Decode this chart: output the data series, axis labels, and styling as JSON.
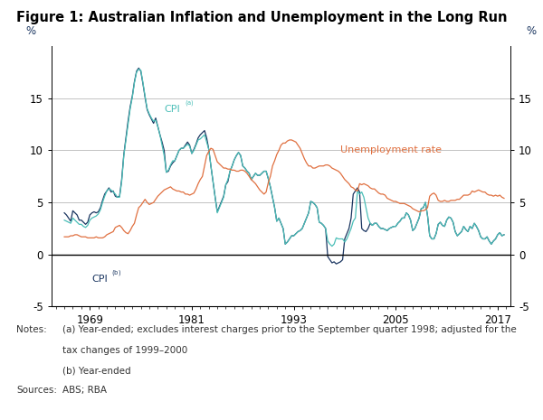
{
  "title": "Figure 1: Australian Inflation and Unemployment in the Long Run",
  "title_fontsize": 10.5,
  "ylabel": "%",
  "ylim": [
    -5,
    20
  ],
  "yticks": [
    -5,
    0,
    5,
    10,
    15
  ],
  "xlim_start": 1964.5,
  "xlim_end": 2018.5,
  "xticks": [
    1969,
    1981,
    1993,
    2005,
    2017
  ],
  "grid_color": "#aaaaaa",
  "cpi_a_color": "#4bbfb8",
  "cpi_b_color": "#1a3560",
  "unemp_color": "#e07040",
  "bg_color": "#ffffff",
  "cpi_a_years": [
    1966,
    1966.25,
    1966.5,
    1966.75,
    1967,
    1967.25,
    1967.5,
    1967.75,
    1968,
    1968.25,
    1968.5,
    1968.75,
    1969,
    1969.25,
    1969.5,
    1969.75,
    1970,
    1970.25,
    1970.5,
    1970.75,
    1971,
    1971.25,
    1971.5,
    1971.75,
    1972,
    1972.25,
    1972.5,
    1972.75,
    1973,
    1973.25,
    1973.5,
    1973.75,
    1974,
    1974.25,
    1974.5,
    1974.75,
    1975,
    1975.25,
    1975.5,
    1975.75,
    1976,
    1976.25,
    1976.5,
    1976.75,
    1977,
    1977.25,
    1977.5,
    1977.75,
    1978,
    1978.25,
    1978.5,
    1978.75,
    1979,
    1979.25,
    1979.5,
    1979.75,
    1980,
    1980.25,
    1980.5,
    1980.75,
    1981,
    1981.25,
    1981.5,
    1981.75,
    1982,
    1982.25,
    1982.5,
    1982.75,
    1983,
    1983.25,
    1983.5,
    1983.75,
    1984,
    1984.25,
    1984.5,
    1984.75,
    1985,
    1985.25,
    1985.5,
    1985.75,
    1986,
    1986.25,
    1986.5,
    1986.75,
    1987,
    1987.25,
    1987.5,
    1987.75,
    1988,
    1988.25,
    1988.5,
    1988.75,
    1989,
    1989.25,
    1989.5,
    1989.75,
    1990,
    1990.25,
    1990.5,
    1990.75,
    1991,
    1991.25,
    1991.5,
    1991.75,
    1992,
    1992.25,
    1992.5,
    1992.75,
    1993,
    1993.25,
    1993.5,
    1993.75,
    1994,
    1994.25,
    1994.5,
    1994.75,
    1995,
    1995.25,
    1995.5,
    1995.75,
    1996,
    1996.25,
    1996.5,
    1996.75,
    1997,
    1997.25,
    1997.5,
    1997.75,
    1998,
    1998.25,
    1998.5,
    1998.75,
    1999,
    1999.25,
    1999.5,
    1999.75,
    2000,
    2000.25,
    2000.5,
    2000.75,
    2001,
    2001.25,
    2001.5,
    2001.75,
    2002,
    2002.25,
    2002.5,
    2002.75,
    2003,
    2003.25,
    2003.5,
    2003.75,
    2004,
    2004.25,
    2004.5,
    2004.75,
    2005,
    2005.25,
    2005.5,
    2005.75,
    2006,
    2006.25,
    2006.5,
    2006.75,
    2007,
    2007.25,
    2007.5,
    2007.75,
    2008,
    2008.25,
    2008.5,
    2008.75,
    2009,
    2009.25,
    2009.5,
    2009.75,
    2010,
    2010.25,
    2010.5,
    2010.75,
    2011,
    2011.25,
    2011.5,
    2011.75,
    2012,
    2012.25,
    2012.5,
    2012.75,
    2013,
    2013.25,
    2013.5,
    2013.75,
    2014,
    2014.25,
    2014.5,
    2014.75,
    2015,
    2015.25,
    2015.5,
    2015.75,
    2016,
    2016.25,
    2016.5,
    2016.75,
    2017,
    2017.25,
    2017.5,
    2017.75
  ],
  "cpi_a_values": [
    3.3,
    3.2,
    3.1,
    3.0,
    3.5,
    3.3,
    3.1,
    2.9,
    2.9,
    2.7,
    2.6,
    2.8,
    3.3,
    3.5,
    3.6,
    3.7,
    3.9,
    4.3,
    5.0,
    5.6,
    6.1,
    6.3,
    6.2,
    6.0,
    5.8,
    5.5,
    5.5,
    7.0,
    9.5,
    11.0,
    12.5,
    14.0,
    15.1,
    16.5,
    17.5,
    17.8,
    17.7,
    16.5,
    15.2,
    14.0,
    13.5,
    13.1,
    12.8,
    12.9,
    12.3,
    11.5,
    10.5,
    9.5,
    7.9,
    8.1,
    8.6,
    9.0,
    9.0,
    9.5,
    10.0,
    10.2,
    10.2,
    10.4,
    10.6,
    10.4,
    9.7,
    10.0,
    10.5,
    11.0,
    11.1,
    11.3,
    11.5,
    10.8,
    10.1,
    8.5,
    7.0,
    5.5,
    4.0,
    4.5,
    5.0,
    5.5,
    6.7,
    7.2,
    8.0,
    8.5,
    9.1,
    9.5,
    9.8,
    9.5,
    8.5,
    8.3,
    8.0,
    7.8,
    7.2,
    7.5,
    7.8,
    7.6,
    7.6,
    7.8,
    8.0,
    8.0,
    7.3,
    6.5,
    5.5,
    4.5,
    3.2,
    3.5,
    3.0,
    2.5,
    1.0,
    1.2,
    1.5,
    1.8,
    1.8,
    2.0,
    2.2,
    2.3,
    2.5,
    3.0,
    3.5,
    4.0,
    5.1,
    5.0,
    4.8,
    4.5,
    3.1,
    3.0,
    2.8,
    2.5,
    1.3,
    1.0,
    0.8,
    1.0,
    1.6,
    1.5,
    1.5,
    1.5,
    1.2,
    1.5,
    2.0,
    2.5,
    3.2,
    3.5,
    6.1,
    5.8,
    6.0,
    5.5,
    4.5,
    3.5,
    3.0,
    2.8,
    3.0,
    3.0,
    2.7,
    2.5,
    2.5,
    2.4,
    2.3,
    2.5,
    2.6,
    2.7,
    2.7,
    3.0,
    3.2,
    3.5,
    3.5,
    4.0,
    3.8,
    3.3,
    2.3,
    2.5,
    3.0,
    3.5,
    4.4,
    4.5,
    5.0,
    3.7,
    1.8,
    1.5,
    1.5,
    2.0,
    2.9,
    3.1,
    2.8,
    2.7,
    3.3,
    3.6,
    3.5,
    3.1,
    2.2,
    1.8,
    2.0,
    2.2,
    2.7,
    2.4,
    2.2,
    2.7,
    2.5,
    3.0,
    2.7,
    2.3,
    1.7,
    1.5,
    1.5,
    1.7,
    1.3,
    1.0,
    1.3,
    1.5,
    1.9,
    2.1,
    1.8,
    1.9
  ],
  "cpi_b_years": [
    1966,
    1966.25,
    1966.5,
    1966.75,
    1967,
    1967.25,
    1967.5,
    1967.75,
    1968,
    1968.25,
    1968.5,
    1968.75,
    1969,
    1969.25,
    1969.5,
    1969.75,
    1970,
    1970.25,
    1970.5,
    1970.75,
    1971,
    1971.25,
    1971.5,
    1971.75,
    1972,
    1972.25,
    1972.5,
    1972.75,
    1973,
    1973.25,
    1973.5,
    1973.75,
    1974,
    1974.25,
    1974.5,
    1974.75,
    1975,
    1975.25,
    1975.5,
    1975.75,
    1976,
    1976.25,
    1976.5,
    1976.75,
    1977,
    1977.25,
    1977.5,
    1977.75,
    1978,
    1978.25,
    1978.5,
    1978.75,
    1979,
    1979.25,
    1979.5,
    1979.75,
    1980,
    1980.25,
    1980.5,
    1980.75,
    1981,
    1981.25,
    1981.5,
    1981.75,
    1982,
    1982.25,
    1982.5,
    1982.75,
    1983,
    1983.25,
    1983.5,
    1983.75,
    1984,
    1984.25,
    1984.5,
    1984.75,
    1985,
    1985.25,
    1985.5,
    1985.75,
    1986,
    1986.25,
    1986.5,
    1986.75,
    1987,
    1987.25,
    1987.5,
    1987.75,
    1988,
    1988.25,
    1988.5,
    1988.75,
    1989,
    1989.25,
    1989.5,
    1989.75,
    1990,
    1990.25,
    1990.5,
    1990.75,
    1991,
    1991.25,
    1991.5,
    1991.75,
    1992,
    1992.25,
    1992.5,
    1992.75,
    1993,
    1993.25,
    1993.5,
    1993.75,
    1994,
    1994.25,
    1994.5,
    1994.75,
    1995,
    1995.25,
    1995.5,
    1995.75,
    1996,
    1996.25,
    1996.5,
    1996.75,
    1997,
    1997.25,
    1997.5,
    1997.75,
    1998,
    1998.25,
    1998.5,
    1998.75,
    1999,
    1999.25,
    1999.5,
    1999.75,
    2000,
    2000.25,
    2000.5,
    2000.75,
    2001,
    2001.25,
    2001.5,
    2001.75,
    2002,
    2002.25,
    2002.5,
    2002.75,
    2003,
    2003.25,
    2003.5,
    2003.75,
    2004,
    2004.25,
    2004.5,
    2004.75,
    2005,
    2005.25,
    2005.5,
    2005.75,
    2006,
    2006.25,
    2006.5,
    2006.75,
    2007,
    2007.25,
    2007.5,
    2007.75,
    2008,
    2008.25,
    2008.5,
    2008.75,
    2009,
    2009.25,
    2009.5,
    2009.75,
    2010,
    2010.25,
    2010.5,
    2010.75,
    2011,
    2011.25,
    2011.5,
    2011.75,
    2012,
    2012.25,
    2012.5,
    2012.75,
    2013,
    2013.25,
    2013.5,
    2013.75,
    2014,
    2014.25,
    2014.5,
    2014.75,
    2015,
    2015.25,
    2015.5,
    2015.75,
    2016,
    2016.25,
    2016.5,
    2016.75,
    2017,
    2017.25,
    2017.5,
    2017.75
  ],
  "cpi_b_values": [
    4.0,
    3.8,
    3.5,
    3.2,
    4.2,
    4.0,
    3.8,
    3.3,
    3.3,
    3.1,
    2.9,
    3.1,
    3.8,
    4.0,
    4.1,
    4.0,
    4.1,
    4.5,
    5.2,
    5.8,
    6.1,
    6.4,
    6.0,
    6.1,
    5.6,
    5.5,
    5.6,
    7.2,
    9.6,
    11.2,
    12.8,
    14.2,
    15.2,
    16.6,
    17.6,
    17.9,
    17.6,
    16.4,
    15.1,
    13.9,
    13.4,
    13.0,
    12.6,
    13.1,
    12.3,
    11.5,
    10.8,
    10.0,
    7.9,
    8.0,
    8.5,
    8.8,
    9.0,
    9.5,
    10.0,
    10.2,
    10.2,
    10.5,
    10.8,
    10.5,
    9.7,
    10.1,
    10.6,
    11.2,
    11.5,
    11.7,
    11.9,
    11.2,
    10.1,
    8.5,
    7.0,
    5.5,
    4.1,
    4.6,
    5.1,
    5.6,
    6.7,
    7.0,
    8.0,
    8.5,
    9.1,
    9.5,
    9.8,
    9.5,
    8.5,
    8.3,
    8.0,
    7.8,
    7.2,
    7.5,
    7.8,
    7.6,
    7.6,
    7.8,
    8.0,
    8.0,
    7.3,
    6.5,
    5.5,
    4.5,
    3.2,
    3.5,
    3.0,
    2.5,
    1.0,
    1.2,
    1.5,
    1.8,
    1.8,
    2.0,
    2.2,
    2.3,
    2.5,
    3.0,
    3.5,
    4.0,
    5.1,
    5.0,
    4.8,
    4.5,
    3.1,
    3.0,
    2.8,
    2.5,
    -0.2,
    -0.5,
    -0.8,
    -0.7,
    -0.9,
    -0.8,
    -0.7,
    -0.5,
    1.5,
    2.0,
    2.5,
    3.5,
    5.8,
    6.1,
    6.4,
    6.0,
    2.5,
    2.3,
    2.2,
    2.5,
    3.0,
    2.8,
    3.0,
    3.0,
    2.7,
    2.5,
    2.5,
    2.4,
    2.3,
    2.5,
    2.6,
    2.7,
    2.7,
    3.0,
    3.2,
    3.5,
    3.5,
    4.0,
    3.8,
    3.3,
    2.3,
    2.5,
    3.0,
    3.5,
    4.4,
    4.5,
    5.0,
    3.7,
    1.8,
    1.5,
    1.5,
    2.0,
    2.9,
    3.1,
    2.8,
    2.7,
    3.3,
    3.6,
    3.5,
    3.1,
    2.2,
    1.8,
    2.0,
    2.2,
    2.7,
    2.4,
    2.2,
    2.7,
    2.5,
    3.0,
    2.7,
    2.3,
    1.7,
    1.5,
    1.5,
    1.7,
    1.3,
    1.0,
    1.3,
    1.5,
    1.9,
    2.1,
    1.8,
    1.9
  ],
  "unemp_years": [
    1966,
    1966.25,
    1966.5,
    1966.75,
    1967,
    1967.25,
    1967.5,
    1967.75,
    1968,
    1968.25,
    1968.5,
    1968.75,
    1969,
    1969.25,
    1969.5,
    1969.75,
    1970,
    1970.25,
    1970.5,
    1970.75,
    1971,
    1971.25,
    1971.5,
    1971.75,
    1972,
    1972.25,
    1972.5,
    1972.75,
    1973,
    1973.25,
    1973.5,
    1973.75,
    1974,
    1974.25,
    1974.5,
    1974.75,
    1975,
    1975.25,
    1975.5,
    1975.75,
    1976,
    1976.25,
    1976.5,
    1976.75,
    1977,
    1977.25,
    1977.5,
    1977.75,
    1978,
    1978.25,
    1978.5,
    1978.75,
    1979,
    1979.25,
    1979.5,
    1979.75,
    1980,
    1980.25,
    1980.5,
    1980.75,
    1981,
    1981.25,
    1981.5,
    1981.75,
    1982,
    1982.25,
    1982.5,
    1982.75,
    1983,
    1983.25,
    1983.5,
    1983.75,
    1984,
    1984.25,
    1984.5,
    1984.75,
    1985,
    1985.25,
    1985.5,
    1985.75,
    1986,
    1986.25,
    1986.5,
    1986.75,
    1987,
    1987.25,
    1987.5,
    1987.75,
    1988,
    1988.25,
    1988.5,
    1988.75,
    1989,
    1989.25,
    1989.5,
    1989.75,
    1990,
    1990.25,
    1990.5,
    1990.75,
    1991,
    1991.25,
    1991.5,
    1991.75,
    1992,
    1992.25,
    1992.5,
    1992.75,
    1993,
    1993.25,
    1993.5,
    1993.75,
    1994,
    1994.25,
    1994.5,
    1994.75,
    1995,
    1995.25,
    1995.5,
    1995.75,
    1996,
    1996.25,
    1996.5,
    1996.75,
    1997,
    1997.25,
    1997.5,
    1997.75,
    1998,
    1998.25,
    1998.5,
    1998.75,
    1999,
    1999.25,
    1999.5,
    1999.75,
    2000,
    2000.25,
    2000.5,
    2000.75,
    2001,
    2001.25,
    2001.5,
    2001.75,
    2002,
    2002.25,
    2002.5,
    2002.75,
    2003,
    2003.25,
    2003.5,
    2003.75,
    2004,
    2004.25,
    2004.5,
    2004.75,
    2005,
    2005.25,
    2005.5,
    2005.75,
    2006,
    2006.25,
    2006.5,
    2006.75,
    2007,
    2007.25,
    2007.5,
    2007.75,
    2008,
    2008.25,
    2008.5,
    2008.75,
    2009,
    2009.25,
    2009.5,
    2009.75,
    2010,
    2010.25,
    2010.5,
    2010.75,
    2011,
    2011.25,
    2011.5,
    2011.75,
    2012,
    2012.25,
    2012.5,
    2012.75,
    2013,
    2013.25,
    2013.5,
    2013.75,
    2014,
    2014.25,
    2014.5,
    2014.75,
    2015,
    2015.25,
    2015.5,
    2015.75,
    2016,
    2016.25,
    2016.5,
    2016.75,
    2017,
    2017.25,
    2017.5,
    2017.75
  ],
  "unemp_values": [
    1.7,
    1.7,
    1.7,
    1.8,
    1.8,
    1.9,
    1.9,
    1.8,
    1.7,
    1.7,
    1.7,
    1.6,
    1.6,
    1.6,
    1.6,
    1.7,
    1.6,
    1.6,
    1.6,
    1.7,
    1.9,
    2.0,
    2.1,
    2.2,
    2.6,
    2.7,
    2.8,
    2.6,
    2.3,
    2.1,
    2.0,
    2.3,
    2.7,
    3.0,
    3.8,
    4.5,
    4.7,
    5.0,
    5.3,
    5.0,
    4.8,
    4.9,
    5.0,
    5.3,
    5.6,
    5.8,
    6.0,
    6.2,
    6.3,
    6.4,
    6.5,
    6.3,
    6.2,
    6.1,
    6.1,
    6.0,
    6.0,
    5.8,
    5.8,
    5.7,
    5.8,
    5.9,
    6.3,
    6.8,
    7.2,
    7.5,
    8.5,
    9.5,
    9.9,
    10.2,
    10.1,
    9.5,
    8.9,
    8.7,
    8.5,
    8.3,
    8.3,
    8.2,
    8.2,
    8.1,
    8.1,
    8.0,
    8.0,
    8.1,
    8.1,
    8.0,
    7.8,
    7.5,
    7.2,
    7.0,
    6.8,
    6.5,
    6.2,
    6.0,
    5.8,
    6.0,
    6.9,
    7.5,
    8.5,
    9.0,
    9.6,
    10.0,
    10.5,
    10.7,
    10.7,
    10.9,
    11.0,
    11.0,
    10.9,
    10.8,
    10.5,
    10.2,
    9.7,
    9.2,
    8.8,
    8.5,
    8.5,
    8.3,
    8.3,
    8.4,
    8.5,
    8.5,
    8.5,
    8.6,
    8.6,
    8.5,
    8.3,
    8.2,
    8.1,
    8.0,
    7.8,
    7.5,
    7.2,
    7.0,
    6.8,
    6.5,
    6.4,
    6.2,
    6.1,
    6.8,
    6.7,
    6.8,
    6.7,
    6.6,
    6.4,
    6.3,
    6.3,
    6.1,
    5.9,
    5.8,
    5.8,
    5.7,
    5.4,
    5.3,
    5.2,
    5.1,
    5.1,
    5.0,
    4.9,
    4.9,
    4.9,
    4.8,
    4.7,
    4.6,
    4.4,
    4.3,
    4.2,
    4.1,
    4.2,
    4.2,
    4.3,
    4.5,
    5.6,
    5.8,
    5.9,
    5.7,
    5.2,
    5.1,
    5.1,
    5.2,
    5.1,
    5.1,
    5.2,
    5.2,
    5.2,
    5.3,
    5.3,
    5.5,
    5.7,
    5.7,
    5.7,
    5.8,
    6.1,
    6.0,
    6.1,
    6.2,
    6.1,
    6.0,
    6.0,
    5.8,
    5.7,
    5.7,
    5.6,
    5.7,
    5.6,
    5.7,
    5.5,
    5.4
  ]
}
